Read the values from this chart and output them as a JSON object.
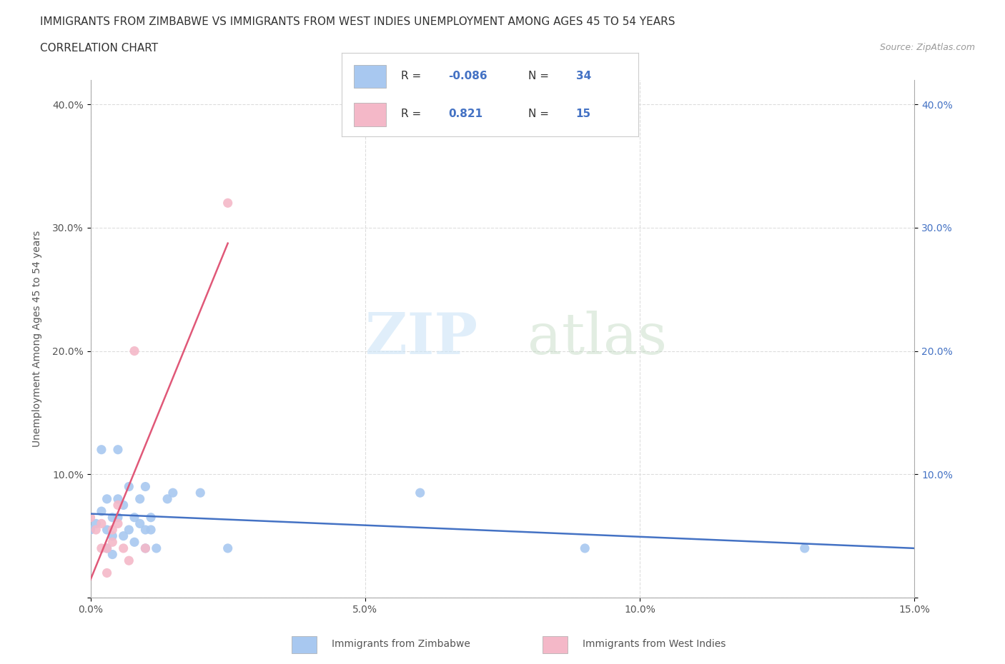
{
  "title_line1": "IMMIGRANTS FROM ZIMBABWE VS IMMIGRANTS FROM WEST INDIES UNEMPLOYMENT AMONG AGES 45 TO 54 YEARS",
  "title_line2": "CORRELATION CHART",
  "source_text": "Source: ZipAtlas.com",
  "ylabel": "Unemployment Among Ages 45 to 54 years",
  "xlim": [
    0.0,
    0.15
  ],
  "ylim": [
    0.0,
    0.42
  ],
  "x_ticks": [
    0.0,
    0.05,
    0.1,
    0.15
  ],
  "x_tick_labels": [
    "0.0%",
    "5.0%",
    "10.0%",
    "15.0%"
  ],
  "y_ticks": [
    0.0,
    0.1,
    0.2,
    0.3,
    0.4
  ],
  "y_tick_labels_left": [
    "",
    "10.0%",
    "20.0%",
    "30.0%",
    "40.0%"
  ],
  "y_tick_labels_right": [
    "",
    "10.0%",
    "20.0%",
    "30.0%",
    "40.0%"
  ],
  "watermark_zip": "ZIP",
  "watermark_atlas": "atlas",
  "legend_label1": "Immigrants from Zimbabwe",
  "legend_label2": "Immigrants from West Indies",
  "legend_R1": "-0.086",
  "legend_N1": "34",
  "legend_R2": "0.821",
  "legend_N2": "15",
  "color_zimbabwe": "#a8c8f0",
  "color_west_indies": "#f4b8c8",
  "color_line_zimbabwe": "#4472c4",
  "color_line_west_indies": "#e05878",
  "background_color": "#ffffff",
  "grid_color": "#dddddd",
  "zimbabwe_x": [
    0.0,
    0.001,
    0.002,
    0.002,
    0.003,
    0.003,
    0.003,
    0.004,
    0.004,
    0.004,
    0.005,
    0.005,
    0.005,
    0.006,
    0.006,
    0.007,
    0.007,
    0.008,
    0.008,
    0.009,
    0.009,
    0.01,
    0.01,
    0.01,
    0.011,
    0.011,
    0.012,
    0.014,
    0.015,
    0.02,
    0.025,
    0.06,
    0.09,
    0.13
  ],
  "zimbabwe_y": [
    0.055,
    0.06,
    0.12,
    0.07,
    0.08,
    0.055,
    0.04,
    0.065,
    0.05,
    0.035,
    0.12,
    0.08,
    0.065,
    0.075,
    0.05,
    0.09,
    0.055,
    0.065,
    0.045,
    0.08,
    0.06,
    0.09,
    0.055,
    0.04,
    0.065,
    0.055,
    0.04,
    0.08,
    0.085,
    0.085,
    0.04,
    0.085,
    0.04,
    0.04
  ],
  "west_indies_x": [
    0.0,
    0.001,
    0.002,
    0.002,
    0.003,
    0.003,
    0.004,
    0.004,
    0.005,
    0.005,
    0.006,
    0.007,
    0.008,
    0.01,
    0.025
  ],
  "west_indies_y": [
    0.065,
    0.055,
    0.04,
    0.06,
    0.04,
    0.02,
    0.055,
    0.045,
    0.075,
    0.06,
    0.04,
    0.03,
    0.2,
    0.04,
    0.32
  ]
}
